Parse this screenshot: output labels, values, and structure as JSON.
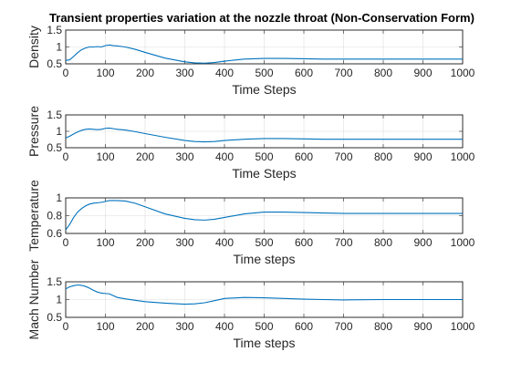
{
  "figure": {
    "title": "Transient properties variation at the nozzle throat (Non-Conservation Form)"
  },
  "chart_data": [
    {
      "type": "line",
      "ylabel": "Density",
      "xlabel": "Time Steps",
      "xlim": [
        0,
        1000
      ],
      "ylim": [
        0.5,
        1.5
      ],
      "xticks": [
        0,
        100,
        200,
        300,
        400,
        500,
        600,
        700,
        800,
        900,
        1000
      ],
      "yticks": [
        0.5,
        1,
        1.5
      ],
      "xtick_labels": [
        "0",
        "100",
        "200",
        "300",
        "400",
        "500",
        "600",
        "700",
        "800",
        "900",
        "1000"
      ],
      "ytick_labels": [
        "0.5",
        "1",
        "1.5"
      ],
      "grid": true,
      "color": "#0072bd",
      "x": [
        0,
        10,
        20,
        30,
        40,
        50,
        60,
        70,
        80,
        90,
        100,
        110,
        120,
        130,
        150,
        175,
        200,
        250,
        300,
        325,
        350,
        375,
        400,
        450,
        500,
        550,
        600,
        650,
        700,
        800,
        900,
        1000
      ],
      "y": [
        0.6,
        0.62,
        0.72,
        0.83,
        0.92,
        0.97,
        1.0,
        1.0,
        1.01,
        1.0,
        1.04,
        1.06,
        1.04,
        1.03,
        1.0,
        0.93,
        0.84,
        0.67,
        0.56,
        0.53,
        0.52,
        0.54,
        0.58,
        0.64,
        0.66,
        0.66,
        0.65,
        0.64,
        0.64,
        0.64,
        0.64,
        0.64
      ]
    },
    {
      "type": "line",
      "ylabel": "Pressure",
      "xlabel": "Time Steps",
      "xlim": [
        0,
        1000
      ],
      "ylim": [
        0.5,
        1.5
      ],
      "xticks": [
        0,
        100,
        200,
        300,
        400,
        500,
        600,
        700,
        800,
        900,
        1000
      ],
      "yticks": [
        0.5,
        1,
        1.5
      ],
      "xtick_labels": [
        "0",
        "100",
        "200",
        "300",
        "400",
        "500",
        "600",
        "700",
        "800",
        "900",
        "1000"
      ],
      "ytick_labels": [
        "0.5",
        "1",
        "1.5"
      ],
      "grid": true,
      "color": "#0072bd",
      "x": [
        0,
        10,
        20,
        30,
        40,
        50,
        60,
        70,
        80,
        90,
        100,
        110,
        120,
        130,
        150,
        175,
        200,
        250,
        300,
        325,
        350,
        375,
        400,
        450,
        500,
        550,
        600,
        650,
        700,
        800,
        900,
        1000
      ],
      "y": [
        0.8,
        0.85,
        0.92,
        0.98,
        1.03,
        1.06,
        1.07,
        1.06,
        1.05,
        1.06,
        1.09,
        1.1,
        1.08,
        1.06,
        1.04,
        0.99,
        0.93,
        0.82,
        0.72,
        0.69,
        0.68,
        0.69,
        0.72,
        0.76,
        0.78,
        0.78,
        0.77,
        0.76,
        0.76,
        0.76,
        0.76,
        0.76
      ]
    },
    {
      "type": "line",
      "ylabel": "Temperature",
      "xlabel": "Time steps",
      "xlim": [
        0,
        1000
      ],
      "ylim": [
        0.6,
        1
      ],
      "xticks": [
        0,
        100,
        200,
        300,
        400,
        500,
        600,
        700,
        800,
        900,
        1000
      ],
      "yticks": [
        0.6,
        0.8,
        1
      ],
      "xtick_labels": [
        "0",
        "100",
        "200",
        "300",
        "400",
        "500",
        "600",
        "700",
        "800",
        "900",
        "1000"
      ],
      "ytick_labels": [
        "0.6",
        "0.8",
        "1"
      ],
      "grid": true,
      "color": "#0072bd",
      "x": [
        0,
        10,
        20,
        30,
        40,
        50,
        60,
        70,
        80,
        90,
        100,
        110,
        120,
        130,
        150,
        175,
        200,
        250,
        300,
        325,
        350,
        375,
        400,
        450,
        500,
        550,
        600,
        650,
        700,
        800,
        900,
        1000
      ],
      "y": [
        0.64,
        0.7,
        0.78,
        0.84,
        0.88,
        0.91,
        0.93,
        0.94,
        0.945,
        0.95,
        0.96,
        0.97,
        0.97,
        0.97,
        0.965,
        0.94,
        0.9,
        0.82,
        0.77,
        0.755,
        0.75,
        0.76,
        0.78,
        0.82,
        0.84,
        0.84,
        0.835,
        0.83,
        0.825,
        0.825,
        0.825,
        0.825
      ]
    },
    {
      "type": "line",
      "ylabel": "Mach Number",
      "xlabel": "Time steps",
      "xlim": [
        0,
        1000
      ],
      "ylim": [
        0.5,
        1.5
      ],
      "xticks": [
        0,
        100,
        200,
        300,
        400,
        500,
        600,
        700,
        800,
        900,
        1000
      ],
      "yticks": [
        0.5,
        1,
        1.5
      ],
      "xtick_labels": [
        "0",
        "100",
        "200",
        "300",
        "400",
        "500",
        "600",
        "700",
        "800",
        "900",
        "1000"
      ],
      "ytick_labels": [
        "0.5",
        "1",
        "1.5"
      ],
      "grid": true,
      "color": "#0072bd",
      "x": [
        0,
        10,
        20,
        30,
        40,
        50,
        60,
        70,
        80,
        90,
        100,
        110,
        120,
        130,
        150,
        175,
        200,
        250,
        300,
        325,
        350,
        375,
        400,
        450,
        500,
        550,
        600,
        650,
        700,
        800,
        900,
        1000
      ],
      "y": [
        1.3,
        1.36,
        1.39,
        1.41,
        1.4,
        1.37,
        1.32,
        1.26,
        1.21,
        1.18,
        1.17,
        1.16,
        1.11,
        1.06,
        1.02,
        0.98,
        0.94,
        0.9,
        0.87,
        0.88,
        0.91,
        0.97,
        1.03,
        1.06,
        1.05,
        1.03,
        1.01,
        1.0,
        0.99,
        1.0,
        1.0,
        1.0
      ]
    }
  ]
}
